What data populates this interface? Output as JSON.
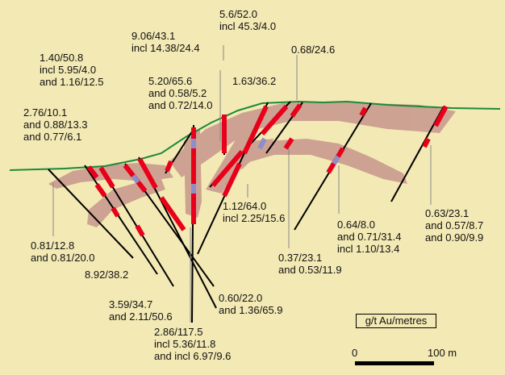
{
  "colors": {
    "background": "#f3e9b4",
    "zone": "#c99b8f",
    "surface": "#1c8a3a",
    "drillhole": "#000000",
    "intercept": "#e8001a",
    "highlight": "#8e8ec8"
  },
  "labels": [
    {
      "id": "l1",
      "lines": [
        "5.6/52.0",
        "incl 45.3/4.0"
      ]
    },
    {
      "id": "l2",
      "lines": [
        "9.06/43.1",
        "incl 14.38/24.4"
      ]
    },
    {
      "id": "l3",
      "lines": [
        "0.68/24.6"
      ]
    },
    {
      "id": "l4",
      "lines": [
        "1.40/50.8",
        "incl 5.95/4.0",
        "and 1.16/12.5"
      ]
    },
    {
      "id": "l5",
      "lines": [
        "5.20/65.6",
        "and 0.58/5.2",
        "and 0.72/14.0"
      ]
    },
    {
      "id": "l6",
      "lines": [
        "1.63/36.2"
      ]
    },
    {
      "id": "l7",
      "lines": [
        "2.76/10.1",
        "and 0.88/13.3",
        "and 0.77/6.1"
      ]
    },
    {
      "id": "l8",
      "lines": [
        "1.12/64.0",
        "incl 2.25/15.6"
      ]
    },
    {
      "id": "l9",
      "lines": [
        "0.64/8.0",
        "and 0.71/31.4",
        "incl 1.10/13.4"
      ]
    },
    {
      "id": "l10",
      "lines": [
        "0.63/23.1",
        "and 0.57/8.7",
        "and 0.90/9.9"
      ]
    },
    {
      "id": "l11",
      "lines": [
        "0.81/12.8",
        "and 0.81/20.0"
      ]
    },
    {
      "id": "l12",
      "lines": [
        "0.37/23.1",
        "and 0.53/11.9"
      ]
    },
    {
      "id": "l13",
      "lines": [
        "8.92/38.2"
      ]
    },
    {
      "id": "l14",
      "lines": [
        "3.59/34.7",
        "and 2.11/50.6"
      ]
    },
    {
      "id": "l15",
      "lines": [
        "0.60/22.0",
        "and 1.36/65.9"
      ]
    },
    {
      "id": "l16",
      "lines": [
        "2.86/117.5",
        "incl 5.36/11.8",
        "and incl 6.97/9.6"
      ]
    }
  ],
  "legend": {
    "units": "g/t Au/metres"
  },
  "scale": {
    "start": "0",
    "end": "100 m"
  }
}
